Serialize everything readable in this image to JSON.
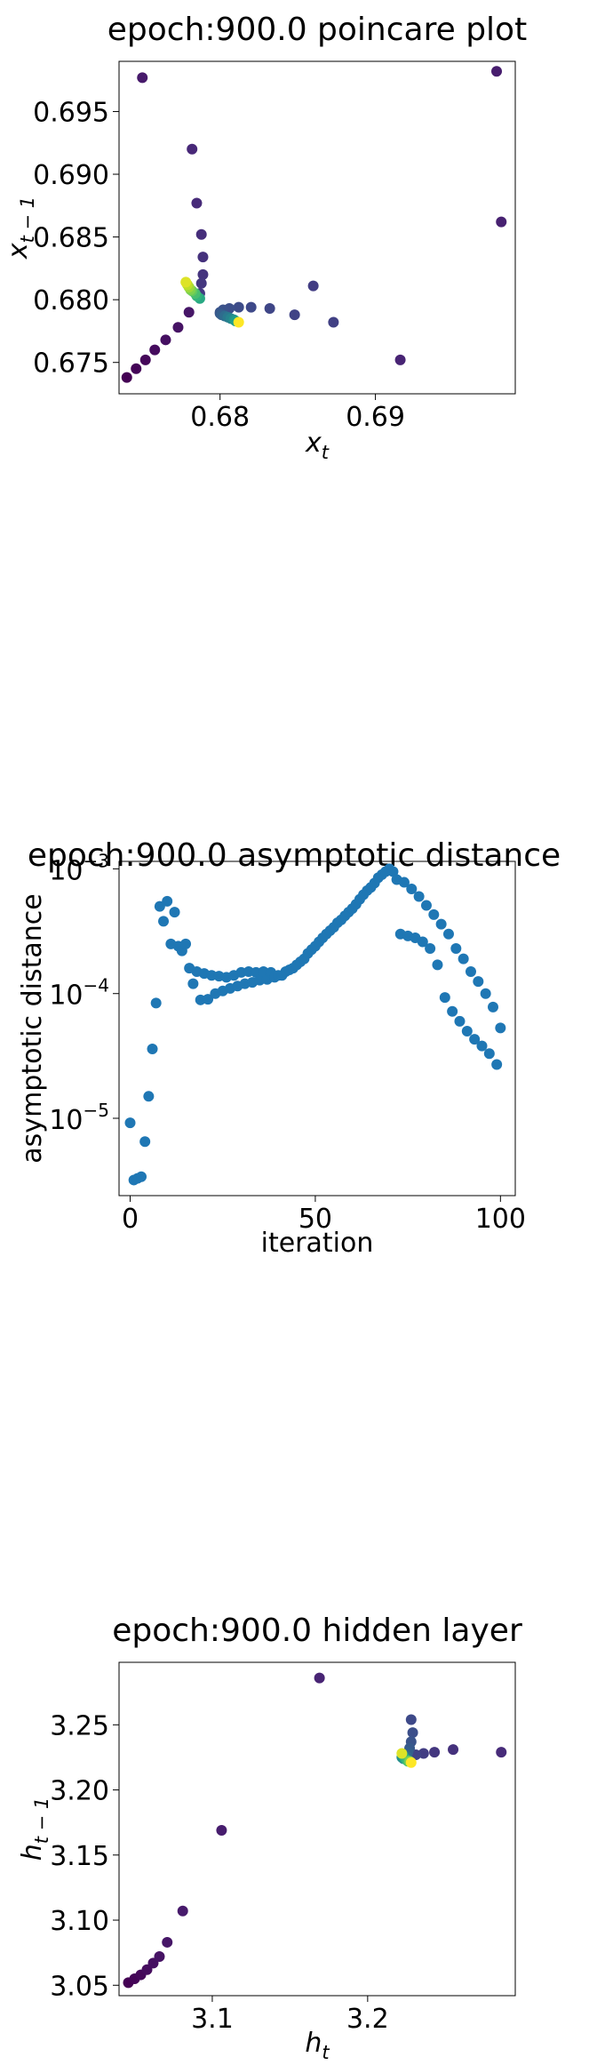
{
  "chart_data": [
    {
      "type": "scatter",
      "title": "epoch:900.0 poincare plot",
      "xlabel": "x",
      "xlabel_sub": "t",
      "ylabel": "x",
      "ylabel_sub": "t − 1",
      "xlim": [
        0.6735,
        0.699
      ],
      "ylim": [
        0.6725,
        0.699
      ],
      "xticks": [
        {
          "v": 0.68,
          "label": "0.68"
        },
        {
          "v": 0.69,
          "label": "0.69"
        }
      ],
      "yticks": [
        {
          "v": 0.675,
          "label": "0.675"
        },
        {
          "v": 0.68,
          "label": "0.680"
        },
        {
          "v": 0.685,
          "label": "0.685"
        },
        {
          "v": 0.69,
          "label": "0.690"
        },
        {
          "v": 0.695,
          "label": "0.695"
        }
      ],
      "colormap": "viridis",
      "points": [
        [
          0.674,
          0.6738,
          0.0
        ],
        [
          0.6746,
          0.6745,
          0.01
        ],
        [
          0.6752,
          0.6752,
          0.02
        ],
        [
          0.6758,
          0.676,
          0.03
        ],
        [
          0.6765,
          0.6768,
          0.04
        ],
        [
          0.6773,
          0.6778,
          0.05
        ],
        [
          0.678,
          0.679,
          0.06
        ],
        [
          0.675,
          0.6977,
          0.07
        ],
        [
          0.6978,
          0.6982,
          0.08
        ],
        [
          0.6981,
          0.6862,
          0.09
        ],
        [
          0.6916,
          0.6752,
          0.1
        ],
        [
          0.6782,
          0.692,
          0.11
        ],
        [
          0.6785,
          0.6877,
          0.12
        ],
        [
          0.6788,
          0.6852,
          0.13
        ],
        [
          0.6789,
          0.6834,
          0.14
        ],
        [
          0.6789,
          0.682,
          0.15
        ],
        [
          0.6788,
          0.6813,
          0.16
        ],
        [
          0.6787,
          0.6805,
          0.17
        ],
        [
          0.686,
          0.6811,
          0.18
        ],
        [
          0.6873,
          0.6782,
          0.19
        ],
        [
          0.6848,
          0.6788,
          0.2
        ],
        [
          0.6832,
          0.6793,
          0.21
        ],
        [
          0.682,
          0.6794,
          0.22
        ],
        [
          0.6812,
          0.6794,
          0.23
        ],
        [
          0.6806,
          0.6793,
          0.24
        ],
        [
          0.6802,
          0.6792,
          0.25
        ],
        [
          0.68,
          0.679,
          0.26
        ],
        [
          0.68,
          0.6789,
          0.27
        ],
        [
          0.6801,
          0.6788,
          0.3
        ],
        [
          0.6803,
          0.6787,
          0.35
        ],
        [
          0.6805,
          0.6786,
          0.4
        ],
        [
          0.6807,
          0.6785,
          0.45
        ],
        [
          0.6809,
          0.6784,
          0.5
        ],
        [
          0.681,
          0.6783,
          0.55
        ],
        [
          0.6787,
          0.6801,
          0.6
        ],
        [
          0.6785,
          0.6803,
          0.65
        ],
        [
          0.6784,
          0.6805,
          0.7
        ],
        [
          0.6782,
          0.6807,
          0.75
        ],
        [
          0.6781,
          0.6808,
          0.8
        ],
        [
          0.678,
          0.681,
          0.85
        ],
        [
          0.6779,
          0.6812,
          0.9
        ],
        [
          0.6778,
          0.6814,
          0.95
        ],
        [
          0.6812,
          0.6782,
          1.0
        ]
      ]
    },
    {
      "type": "scatter",
      "title": "epoch:900.0 asymptotic distance",
      "xlabel": "iteration",
      "ylabel": "asymptotic distance",
      "yscale": "log",
      "xlim": [
        -3,
        104
      ],
      "ylim_log10": [
        -5.62,
        -2.94
      ],
      "xticks": [
        {
          "v": 0,
          "label": "0"
        },
        {
          "v": 50,
          "label": "50"
        },
        {
          "v": 100,
          "label": "100"
        }
      ],
      "yticks": [
        {
          "exp": -5,
          "base": "10",
          "sup": "−5"
        },
        {
          "exp": -4,
          "base": "10",
          "sup": "−4"
        },
        {
          "exp": -3,
          "base": "10",
          "sup": "−3"
        }
      ],
      "color": "#1f77b4",
      "points": [
        [
          0,
          9.2e-06
        ],
        [
          1,
          3.2e-06
        ],
        [
          2,
          3.3e-06
        ],
        [
          3,
          3.4e-06
        ],
        [
          4,
          6.5e-06
        ],
        [
          5,
          1.5e-05
        ],
        [
          6,
          3.6e-05
        ],
        [
          7,
          8.4e-05
        ],
        [
          8,
          0.0005
        ],
        [
          9,
          0.00038
        ],
        [
          10,
          0.00055
        ],
        [
          11,
          0.00025
        ],
        [
          12,
          0.00045
        ],
        [
          13,
          0.00024
        ],
        [
          14,
          0.00022
        ],
        [
          15,
          0.00025
        ],
        [
          16,
          0.00016
        ],
        [
          17,
          0.00012
        ],
        [
          18,
          0.00015
        ],
        [
          19,
          8.9e-05
        ],
        [
          20,
          0.000145
        ],
        [
          21,
          9e-05
        ],
        [
          22,
          0.00014
        ],
        [
          23,
          0.0001
        ],
        [
          24,
          0.000138
        ],
        [
          25,
          0.000105
        ],
        [
          26,
          0.000135
        ],
        [
          27,
          0.00011
        ],
        [
          28,
          0.00014
        ],
        [
          29,
          0.000115
        ],
        [
          30,
          0.000148
        ],
        [
          31,
          0.00012
        ],
        [
          32,
          0.00015
        ],
        [
          33,
          0.000123
        ],
        [
          34,
          0.000148
        ],
        [
          35,
          0.000128
        ],
        [
          36,
          0.00015
        ],
        [
          37,
          0.00013
        ],
        [
          38,
          0.000148
        ],
        [
          39,
          0.000135
        ],
        [
          40,
          0.00014
        ],
        [
          41,
          0.00014
        ],
        [
          42,
          0.00015
        ],
        [
          43,
          0.000155
        ],
        [
          44,
          0.00016
        ],
        [
          45,
          0.00017
        ],
        [
          46,
          0.00018
        ],
        [
          47,
          0.00019
        ],
        [
          48,
          0.00021
        ],
        [
          49,
          0.000225
        ],
        [
          50,
          0.00024
        ],
        [
          51,
          0.00026
        ],
        [
          52,
          0.00028
        ],
        [
          53,
          0.0003
        ],
        [
          54,
          0.00032
        ],
        [
          55,
          0.00034
        ],
        [
          56,
          0.00037
        ],
        [
          57,
          0.00039
        ],
        [
          58,
          0.00042
        ],
        [
          59,
          0.00045
        ],
        [
          60,
          0.00048
        ],
        [
          61,
          0.00052
        ],
        [
          62,
          0.00057
        ],
        [
          63,
          0.00062
        ],
        [
          64,
          0.00067
        ],
        [
          65,
          0.00071
        ],
        [
          66,
          0.00077
        ],
        [
          67,
          0.00085
        ],
        [
          68,
          0.0009
        ],
        [
          69,
          0.00095
        ],
        [
          70,
          0.001
        ],
        [
          71,
          0.00095
        ],
        [
          72,
          0.00082
        ],
        [
          73,
          0.0003
        ],
        [
          74,
          0.00078
        ],
        [
          75,
          0.00029
        ],
        [
          76,
          0.00069
        ],
        [
          77,
          0.00028
        ],
        [
          78,
          0.0006
        ],
        [
          79,
          0.00026
        ],
        [
          80,
          0.00051
        ],
        [
          81,
          0.00023
        ],
        [
          82,
          0.00043
        ],
        [
          83,
          0.00017
        ],
        [
          84,
          0.00036
        ],
        [
          85,
          9.3e-05
        ],
        [
          86,
          0.0003
        ],
        [
          87,
          7.2e-05
        ],
        [
          88,
          0.00023
        ],
        [
          89,
          6e-05
        ],
        [
          90,
          0.00019
        ],
        [
          91,
          5e-05
        ],
        [
          92,
          0.00015
        ],
        [
          93,
          4.3e-05
        ],
        [
          94,
          0.000125
        ],
        [
          95,
          3.8e-05
        ],
        [
          96,
          0.0001
        ],
        [
          97,
          3.3e-05
        ],
        [
          98,
          7.8e-05
        ],
        [
          99,
          2.7e-05
        ],
        [
          100,
          5.3e-05
        ]
      ]
    },
    {
      "type": "scatter",
      "title": "epoch:900.0 hidden layer",
      "xlabel": "h",
      "xlabel_sub": "t",
      "ylabel": "h",
      "ylabel_sub": "t − 1",
      "xlim": [
        3.04,
        3.295
      ],
      "ylim": [
        3.042,
        3.298
      ],
      "xticks": [
        {
          "v": 3.1,
          "label": "3.1"
        },
        {
          "v": 3.2,
          "label": "3.2"
        }
      ],
      "yticks": [
        {
          "v": 3.05,
          "label": "3.05"
        },
        {
          "v": 3.1,
          "label": "3.10"
        },
        {
          "v": 3.15,
          "label": "3.15"
        },
        {
          "v": 3.2,
          "label": "3.20"
        },
        {
          "v": 3.25,
          "label": "3.25"
        }
      ],
      "colormap": "viridis",
      "points": [
        [
          3.046,
          3.052,
          0.0
        ],
        [
          3.05,
          3.055,
          0.01
        ],
        [
          3.054,
          3.058,
          0.02
        ],
        [
          3.058,
          3.062,
          0.03
        ],
        [
          3.062,
          3.067,
          0.04
        ],
        [
          3.066,
          3.072,
          0.05
        ],
        [
          3.071,
          3.083,
          0.06
        ],
        [
          3.081,
          3.107,
          0.07
        ],
        [
          3.106,
          3.169,
          0.08
        ],
        [
          3.169,
          3.286,
          0.1
        ],
        [
          3.286,
          3.229,
          0.12
        ],
        [
          3.255,
          3.231,
          0.14
        ],
        [
          3.243,
          3.229,
          0.16
        ],
        [
          3.236,
          3.228,
          0.18
        ],
        [
          3.231,
          3.227,
          0.2
        ],
        [
          3.228,
          3.254,
          0.22
        ],
        [
          3.229,
          3.244,
          0.24
        ],
        [
          3.228,
          3.237,
          0.26
        ],
        [
          3.227,
          3.232,
          0.28
        ],
        [
          3.226,
          3.229,
          0.3
        ],
        [
          3.225,
          3.226,
          0.35
        ],
        [
          3.224,
          3.225,
          0.4
        ],
        [
          3.223,
          3.224,
          0.45
        ],
        [
          3.222,
          3.225,
          0.5
        ],
        [
          3.223,
          3.226,
          0.55
        ],
        [
          3.224,
          3.224,
          0.6
        ],
        [
          3.225,
          3.223,
          0.65
        ],
        [
          3.226,
          3.222,
          0.7
        ],
        [
          3.227,
          3.222,
          0.8
        ],
        [
          3.222,
          3.228,
          0.95
        ],
        [
          3.228,
          3.221,
          1.0
        ]
      ]
    }
  ]
}
